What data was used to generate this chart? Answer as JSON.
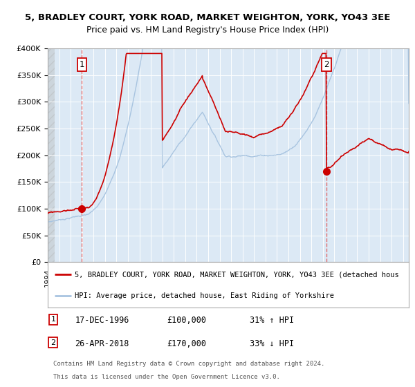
{
  "title": "5, BRADLEY COURT, YORK ROAD, MARKET WEIGHTON, YORK, YO43 3EE",
  "subtitle": "Price paid vs. HM Land Registry's House Price Index (HPI)",
  "hpi_color": "#a8c4e0",
  "price_color": "#cc0000",
  "marker_color": "#cc0000",
  "vline_color": "#e06060",
  "plot_bg": "#dce9f5",
  "ylim": [
    0,
    400000
  ],
  "yticks": [
    0,
    50000,
    100000,
    150000,
    200000,
    250000,
    300000,
    350000,
    400000
  ],
  "ytick_labels": [
    "£0",
    "£50K",
    "£100K",
    "£150K",
    "£200K",
    "£250K",
    "£300K",
    "£350K",
    "£400K"
  ],
  "xlim_start": 1994.0,
  "xlim_end": 2025.5,
  "purchase1_date": 1996.97,
  "purchase1_price": 100000,
  "purchase1_label": "1",
  "purchase1_date_str": "17-DEC-1996",
  "purchase1_price_str": "£100,000",
  "purchase1_hpi_str": "31% ↑ HPI",
  "purchase2_date": 2018.32,
  "purchase2_price": 170000,
  "purchase2_label": "2",
  "purchase2_date_str": "26-APR-2018",
  "purchase2_price_str": "£170,000",
  "purchase2_hpi_str": "33% ↓ HPI",
  "legend_line1": "5, BRADLEY COURT, YORK ROAD, MARKET WEIGHTON, YORK, YO43 3EE (detached hous",
  "legend_line2": "HPI: Average price, detached house, East Riding of Yorkshire",
  "footnote1": "Contains HM Land Registry data © Crown copyright and database right 2024.",
  "footnote2": "This data is licensed under the Open Government Licence v3.0."
}
